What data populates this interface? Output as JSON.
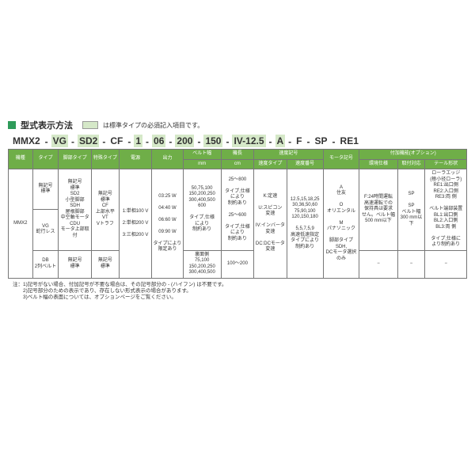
{
  "header": {
    "title": "型式表示方法",
    "highlight_note": "は標準タイプの必須記入項目です。"
  },
  "model": {
    "segs": [
      "MMX2",
      "VG",
      "SD2",
      "CF",
      "1",
      "06",
      "200",
      "150",
      "IV-12.5",
      "A",
      "F",
      "SP",
      "RE1"
    ],
    "hl": [
      false,
      true,
      true,
      false,
      true,
      true,
      true,
      true,
      true,
      true,
      false,
      false,
      false
    ]
  },
  "table": {
    "headers_row1": [
      "機種",
      "タイプ",
      "脚部タイプ",
      "特殊タイプ",
      "電源",
      "出力",
      "ベルト幅",
      "機長",
      "速度記号",
      "",
      "モータ記号",
      "付加機能(オプション)",
      "",
      ""
    ],
    "headers_row2": [
      "",
      "",
      "",
      "",
      "",
      "",
      "mm",
      "cm",
      "速度タイプ",
      "速度番号",
      "",
      "環境仕様",
      "取付対応",
      "テール形状"
    ],
    "rows": [
      {
        "c": [
          "MMX2",
          "無記号\n標準",
          "無記号\n標準\nSD2\n小型脚部\nSDH\n屋根脚部\n中空軸モータ\nCDU\nモータ上部取付",
          "無記号\n標準\nCF\n上部水平\nVT\nVトラフ",
          "1:単相100 V\n\n2:単相200 V\n\n3:三相200 V",
          "03:25 W\n\n04:40 W\n\n06:60 W\n\n09:90 W\n\nタイプにより\n限定あり",
          "50,75,100\n150,200,250\n300,400,500\n600\n\nタイプ,仕様\nにより\n制約あり",
          "25〜800\n\nタイプ,仕様\nにより\n制約あり\n\n25〜600\n\nタイプ,仕様\nにより\n制約あり",
          "K:定速\n\nU:スピコン\n変速\n\nIV:インバータ\n変速\n\nDC:DCモータ\n変速",
          "12.5,15,18,25\n30,36,50,60\n75,90,100\n120,150,180\n\n5,5,7,5,9\n高速低速指定\nタイプにより\n制約あり",
          "A\n住友\n\nO\nオリエンタル\n\nM\nパナソニック\n\n脚部タイプSDH,\nDCモータ選択\nのみ",
          "F:24時間運転\n高速運転での\n保持具は要求\nせん。ベルト幅\n500 mm以下",
          "SP\n\nSP\nベルト幅\n300 mm以下",
          "ローラエッジ\n(極小径ローラ)\nRE1:出口側\nRE2:入口側\nRE3:両 側\n\nベルト端部装置\nBL1:出口側\nBL2:入口側\nBL3:両 側\n\nタイプ,仕様に\nより制約あり"
        ]
      },
      {
        "c": [
          "",
          "VG\n蛇行レス",
          "",
          "",
          "",
          "",
          "",
          "",
          "",
          "",
          "",
          "",
          "",
          ""
        ]
      },
      {
        "c": [
          "",
          "DB\n2列ベルト",
          "無記号\n標準",
          "無記号\n標準",
          "",
          "",
          "裏面側\n75,100\n150,200,250\n300,400,500",
          "100〜200",
          "",
          "",
          "",
          "−",
          "−",
          "−"
        ]
      }
    ]
  },
  "footnotes": [
    "注：1)記号がない場合、付加記号が不要な場合は、その記号部分の - (ハイフン) は不要です。",
    "　　2)記号部分のための表示であり、存在しない形式表示の場合があります。",
    "　　3)ベルト幅の表面については、オプションページをご覧ください。"
  ],
  "colors": {
    "accent": "#2e9b5a",
    "header_bg": "#6fae48",
    "highlight": "#d5e8c8",
    "border": "#777777"
  }
}
